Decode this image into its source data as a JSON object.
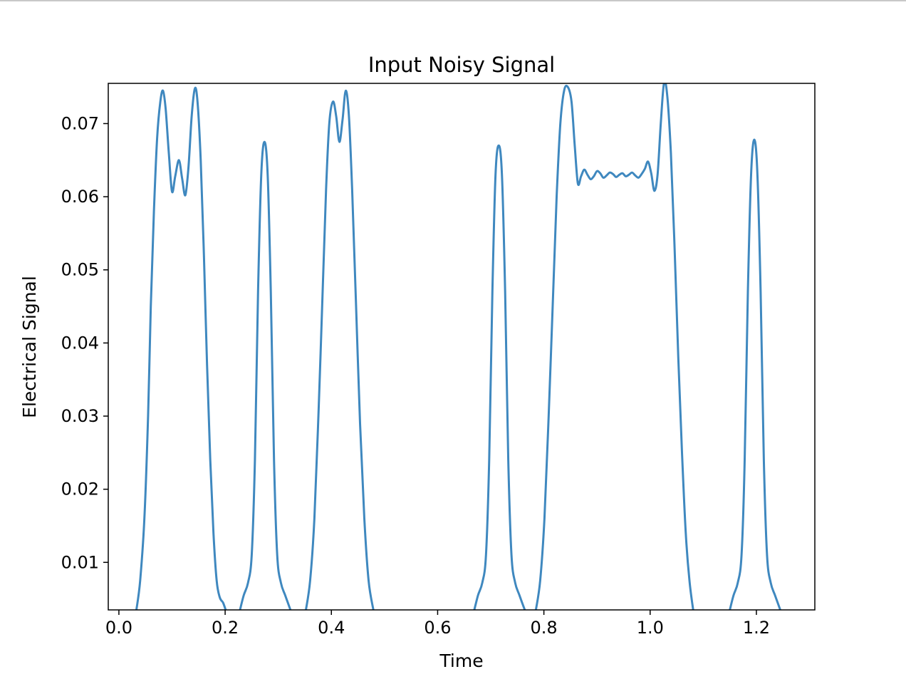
{
  "chart_data": {
    "type": "line",
    "title": "Input Noisy Signal",
    "xlabel": "Time",
    "ylabel": "Electrical Signal",
    "xlim": [
      -0.02,
      1.31
    ],
    "ylim": [
      0.0035,
      0.0755
    ],
    "xticks": [
      0.0,
      0.2,
      0.4,
      0.6,
      0.8,
      1.0,
      1.2
    ],
    "xtick_labels": [
      "0.0",
      "0.2",
      "0.4",
      "0.6",
      "0.8",
      "1.0",
      "1.2"
    ],
    "yticks": [
      0.01,
      0.02,
      0.03,
      0.04,
      0.05,
      0.06,
      0.07
    ],
    "ytick_labels": [
      "0.01",
      "0.02",
      "0.03",
      "0.04",
      "0.05",
      "0.06",
      "0.07"
    ],
    "grid": false,
    "line_color": "#3f88bf",
    "series": [
      {
        "x": [
          0.033,
          0.04,
          0.048,
          0.055,
          0.06,
          0.066,
          0.072,
          0.078,
          0.083,
          0.088,
          0.094,
          0.1,
          0.106,
          0.113,
          0.119,
          0.125,
          0.131,
          0.137,
          0.143,
          0.148,
          0.154,
          0.16,
          0.166,
          0.172,
          0.178,
          0.184,
          0.19,
          0.196,
          0.201
        ],
        "y": [
          0.0035,
          0.0075,
          0.016,
          0.03,
          0.045,
          0.058,
          0.068,
          0.073,
          0.0745,
          0.072,
          0.066,
          0.0607,
          0.0628,
          0.065,
          0.0625,
          0.0602,
          0.064,
          0.071,
          0.0748,
          0.073,
          0.065,
          0.052,
          0.037,
          0.024,
          0.014,
          0.0075,
          0.0052,
          0.0045,
          0.0035
        ]
      },
      {
        "x": [
          0.228,
          0.235,
          0.243,
          0.25,
          0.256,
          0.262,
          0.268,
          0.274,
          0.28,
          0.286,
          0.292,
          0.298,
          0.305,
          0.313,
          0.323
        ],
        "y": [
          0.0035,
          0.0055,
          0.0072,
          0.011,
          0.024,
          0.047,
          0.063,
          0.0675,
          0.063,
          0.047,
          0.024,
          0.011,
          0.0072,
          0.0055,
          0.0035
        ]
      },
      {
        "x": [
          0.352,
          0.36,
          0.368,
          0.376,
          0.384,
          0.39,
          0.396,
          0.403,
          0.409,
          0.415,
          0.421,
          0.427,
          0.433,
          0.439,
          0.446,
          0.454,
          0.462,
          0.47,
          0.479
        ],
        "y": [
          0.0035,
          0.0075,
          0.016,
          0.031,
          0.048,
          0.061,
          0.07,
          0.073,
          0.071,
          0.0675,
          0.0705,
          0.0745,
          0.071,
          0.061,
          0.046,
          0.029,
          0.016,
          0.0075,
          0.0035
        ]
      },
      {
        "x": [
          0.669,
          0.676,
          0.684,
          0.691,
          0.697,
          0.703,
          0.709,
          0.715,
          0.721,
          0.727,
          0.733,
          0.739,
          0.746,
          0.754,
          0.764
        ],
        "y": [
          0.0035,
          0.0055,
          0.0072,
          0.011,
          0.024,
          0.047,
          0.063,
          0.067,
          0.063,
          0.047,
          0.024,
          0.011,
          0.0072,
          0.0055,
          0.0035
        ]
      },
      {
        "x": [
          0.785,
          0.793,
          0.801,
          0.809,
          0.817,
          0.824,
          0.831,
          0.838,
          0.845,
          0.852,
          0.858,
          0.864,
          0.87,
          0.876,
          0.882,
          0.888,
          0.894,
          0.9,
          0.906,
          0.912,
          0.918,
          0.924,
          0.93,
          0.936,
          0.942,
          0.948,
          0.954,
          0.96,
          0.966,
          0.972,
          0.978,
          0.984,
          0.99,
          0.996,
          1.002,
          1.008,
          1.014,
          1.02,
          1.026,
          1.032,
          1.039,
          1.046,
          1.053,
          1.06,
          1.067,
          1.074,
          1.081
        ],
        "y": [
          0.0035,
          0.0075,
          0.016,
          0.03,
          0.046,
          0.06,
          0.07,
          0.0745,
          0.075,
          0.073,
          0.067,
          0.0618,
          0.0628,
          0.0637,
          0.063,
          0.0624,
          0.0628,
          0.0635,
          0.0632,
          0.0626,
          0.0629,
          0.0633,
          0.0631,
          0.0627,
          0.063,
          0.0632,
          0.0628,
          0.063,
          0.0633,
          0.0629,
          0.0626,
          0.0631,
          0.0638,
          0.0648,
          0.0632,
          0.0608,
          0.063,
          0.07,
          0.0755,
          0.074,
          0.066,
          0.053,
          0.038,
          0.025,
          0.014,
          0.0075,
          0.0035
        ]
      },
      {
        "x": [
          1.15,
          1.157,
          1.165,
          1.172,
          1.178,
          1.184,
          1.19,
          1.196,
          1.202,
          1.208,
          1.214,
          1.22,
          1.227,
          1.235,
          1.245
        ],
        "y": [
          0.0035,
          0.0055,
          0.0072,
          0.011,
          0.024,
          0.047,
          0.063,
          0.0678,
          0.063,
          0.047,
          0.024,
          0.011,
          0.0072,
          0.0055,
          0.0035
        ]
      }
    ]
  }
}
